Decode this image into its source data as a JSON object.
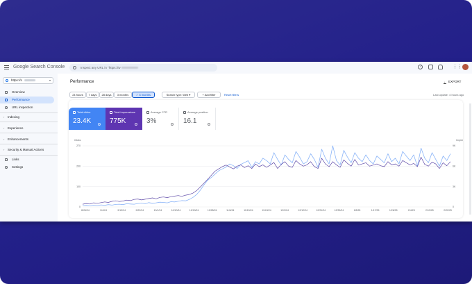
{
  "app": {
    "logo_text": "Google Search Console",
    "search_placeholder": "Inspect any URL in \"https://w"
  },
  "sidebar": {
    "property": "https://s",
    "items": [
      {
        "label": "Overview",
        "icon": "home-icon"
      },
      {
        "label": "Performance",
        "icon": "trending-icon",
        "active": true
      },
      {
        "label": "URL inspection",
        "icon": "search-icon"
      }
    ],
    "sections": [
      {
        "label": "Indexing"
      },
      {
        "label": "Experience"
      },
      {
        "label": "Enhancements"
      },
      {
        "label": "Security & Manual Actions"
      }
    ],
    "bottom_items": [
      {
        "label": "Links",
        "icon": "links-icon"
      },
      {
        "label": "Settings",
        "icon": "settings-icon"
      }
    ]
  },
  "main": {
    "title": "Performance",
    "export_label": "EXPORT",
    "date_ranges": [
      "24 hours",
      "7 days",
      "28 days",
      "3 months",
      "6 months"
    ],
    "selected_range": "6 months",
    "search_type": "Search type: Web",
    "add_filter": "+ Add filter",
    "reset_filters": "Reset filters",
    "last_update": "Last update: 4 hours ago"
  },
  "metrics": [
    {
      "label": "Total clicks",
      "value": "23.4K",
      "selected": true,
      "color": "#4285f4"
    },
    {
      "label": "Total impressions",
      "value": "775K",
      "selected": true,
      "color": "#5e35b1"
    },
    {
      "label": "Average CTR",
      "value": "3%",
      "selected": false
    },
    {
      "label": "Average position",
      "value": "16.1",
      "selected": false
    }
  ],
  "colors": {
    "clicks": "#8ab4f8",
    "impressions": "#5e4aa8",
    "accent": "#0b57d0",
    "avatar": "#b3543d"
  },
  "chart_data": {
    "type": "line",
    "left_axis_label": "Clicks",
    "right_axis_label": "Impressions",
    "left_ticks": [
      "0",
      "100",
      "200",
      "270"
    ],
    "right_ticks": [
      "0",
      "3K",
      "6K",
      "9K"
    ],
    "x_labels": [
      "8/26/24",
      "9/4/24",
      "9/13/24",
      "9/22/24",
      "10/1/24",
      "10/10/24",
      "10/19/24",
      "10/28/24",
      "11/6/24",
      "11/15/24",
      "11/24/24",
      "12/3/24",
      "12/12/24",
      "12/21/24",
      "12/30/24",
      "1/8/25",
      "1/17/25",
      "1/26/25",
      "2/4/25",
      "2/13/25",
      "2/22/25"
    ],
    "ylim_left": [
      0,
      270
    ],
    "ylim_right": [
      0,
      9000
    ],
    "series": [
      {
        "name": "Clicks",
        "axis": "left",
        "values": [
          6,
          7,
          5,
          8,
          6,
          9,
          7,
          10,
          8,
          11,
          12,
          10,
          14,
          13,
          12,
          15,
          17,
          14,
          19,
          16,
          18,
          21,
          20,
          18,
          23,
          22,
          25,
          28,
          27,
          33,
          42,
          55,
          74,
          98,
          118,
          130,
          145,
          160,
          168,
          176,
          190,
          182,
          170,
          188,
          196,
          204,
          175,
          200,
          190,
          215,
          205,
          190,
          240,
          210,
          185,
          230,
          210,
          195,
          245,
          220,
          190,
          200,
          235,
          210,
          175,
          255,
          215,
          190,
          270,
          205,
          185,
          250,
          220,
          195,
          240,
          215,
          200,
          230,
          205,
          190,
          225,
          210,
          195,
          235,
          200,
          215,
          190,
          245,
          225,
          205,
          230,
          180,
          260,
          215,
          195,
          240,
          210,
          180,
          225,
          205,
          235
        ]
      },
      {
        "name": "Impressions",
        "axis": "left",
        "values": [
          12,
          15,
          13,
          18,
          16,
          19,
          22,
          20,
          25,
          27,
          24,
          26,
          30,
          28,
          33,
          35,
          31,
          34,
          37,
          40,
          36,
          42,
          44,
          41,
          45,
          48,
          50,
          47,
          52,
          55,
          61,
          72,
          88,
          105,
          122,
          140,
          158,
          168,
          178,
          185,
          176,
          168,
          180,
          186,
          174,
          182,
          170,
          190,
          178,
          186,
          175,
          185,
          196,
          170,
          188,
          200,
          180,
          175,
          205,
          190,
          180,
          186,
          200,
          178,
          170,
          215,
          190,
          178,
          200,
          186,
          175,
          208,
          192,
          180,
          210,
          185,
          190,
          195,
          180,
          185,
          190,
          182,
          178,
          200,
          186,
          190,
          180,
          205,
          195,
          186,
          192,
          178,
          220,
          188,
          180,
          198,
          190,
          170,
          195,
          182,
          200
        ]
      }
    ]
  }
}
